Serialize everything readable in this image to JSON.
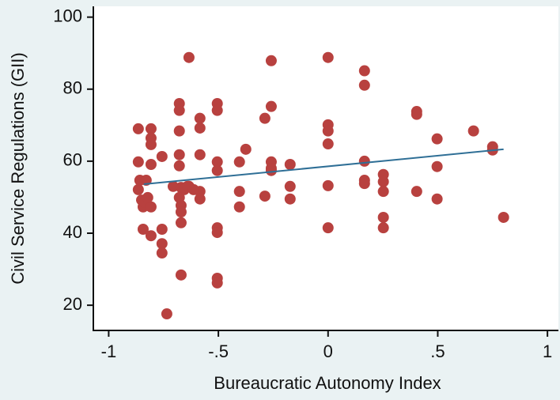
{
  "chart_data": {
    "type": "scatter",
    "xlabel": "Bureaucratic Autonomy Index",
    "ylabel": "Civil Service Regulations (GII)",
    "color": "#b8413f",
    "x": [
      -0.865,
      -0.865,
      -0.865,
      -0.858,
      -0.85,
      -0.843,
      -0.836,
      -0.843,
      -0.807,
      -0.807,
      -0.807,
      -0.807,
      -0.807,
      -0.807,
      -0.757,
      -0.757,
      -0.757,
      -0.757,
      -0.735,
      -0.706,
      -0.678,
      -0.678,
      -0.678,
      -0.678,
      -0.678,
      -0.67,
      -0.67,
      -0.67,
      -0.67,
      -0.67,
      -0.656,
      -0.634,
      -0.634,
      -0.584,
      -0.584,
      -0.584,
      -0.584,
      -0.584,
      -0.505,
      -0.505,
      -0.505,
      -0.505,
      -0.505,
      -0.505,
      -0.505,
      -0.505,
      -0.404,
      -0.404,
      -0.404,
      -0.375,
      -0.288,
      -0.288,
      -0.259,
      -0.259,
      -0.259,
      -0.259,
      -0.259,
      -0.173,
      -0.173,
      -0.173,
      0,
      0,
      0,
      0,
      0,
      0,
      0.166,
      0.166,
      0.166,
      0.166,
      0.166,
      0.252,
      0.252,
      0.252,
      0.252,
      0.252,
      0.404,
      0.404,
      0.404,
      0.497,
      0.497,
      0.497,
      0.663,
      0.75,
      0.75,
      0.8,
      -0.829,
      -0.641,
      -0.613,
      -0.822,
      -0.678
    ],
    "y": [
      69.0,
      59.8,
      52.1,
      54.7,
      49.2,
      47.3,
      48.6,
      41.1,
      69.0,
      66.4,
      64.6,
      59.1,
      47.3,
      39.3,
      61.3,
      41.1,
      37.1,
      34.5,
      17.6,
      53.0,
      76.0,
      74.1,
      68.4,
      61.8,
      58.7,
      52.7,
      47.7,
      45.9,
      42.9,
      28.4,
      52.1,
      88.8,
      53.0,
      71.9,
      69.2,
      61.8,
      51.6,
      49.5,
      76.0,
      74.1,
      59.8,
      57.4,
      41.5,
      40.2,
      27.5,
      26.2,
      59.8,
      51.6,
      47.3,
      63.3,
      71.9,
      50.3,
      87.9,
      75.2,
      59.8,
      57.4,
      58.0,
      59.1,
      53.0,
      49.5,
      88.8,
      70.1,
      68.4,
      64.8,
      53.2,
      41.5,
      85.1,
      81.1,
      60.0,
      54.7,
      53.8,
      56.3,
      54.3,
      51.6,
      44.4,
      41.5,
      73.8,
      73.0,
      51.6,
      66.2,
      58.5,
      49.5,
      68.4,
      64.0,
      63.1,
      44.4,
      54.7,
      53.0,
      52.1,
      49.9,
      49.9
    ],
    "fit_line": {
      "x": [
        -0.84,
        0.8
      ],
      "y": [
        53.6,
        63.3
      ],
      "color": "#2f6f96"
    },
    "xlim": [
      -1.07,
      1.05
    ],
    "ylim": [
      13,
      103
    ],
    "xticks": [
      {
        "value": -1,
        "label": "-1"
      },
      {
        "value": -0.5,
        "label": "-.5"
      },
      0,
      {
        "value": 0.5,
        "label": ".5"
      },
      1
    ],
    "yticks": [
      20,
      40,
      60,
      80,
      100
    ]
  }
}
